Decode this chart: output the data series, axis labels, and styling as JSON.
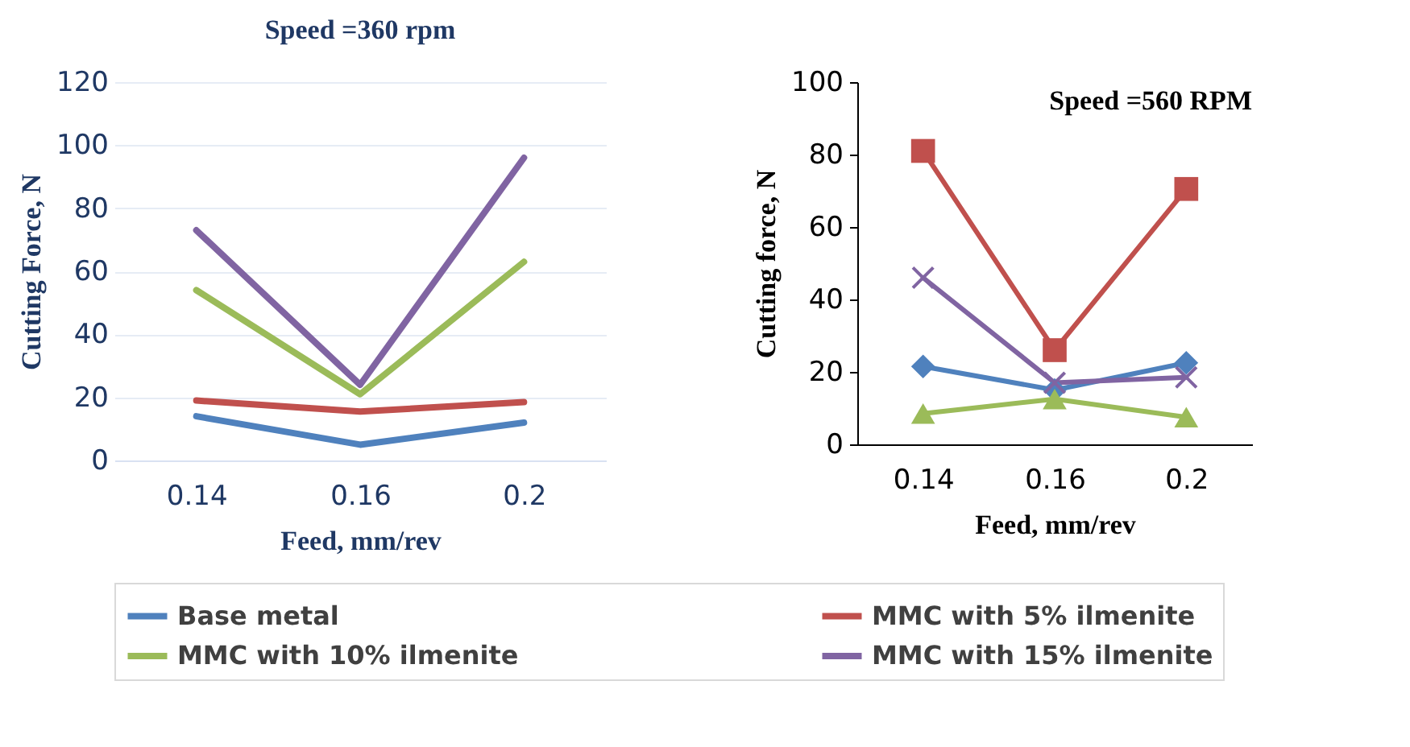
{
  "chart_data": [
    {
      "type": "line",
      "title": "Speed =360 rpm",
      "xlabel": "Feed, mm/rev",
      "ylabel": "Cutting Force, N",
      "categories": [
        "0.14",
        "0.16",
        "0.2"
      ],
      "ylim": [
        0,
        120
      ],
      "yticks": [
        0,
        20,
        40,
        60,
        80,
        100,
        120
      ],
      "grid": "y",
      "legend": "bottom",
      "marker": "none",
      "series": [
        {
          "name": "Base metal",
          "color": "#4f81bd",
          "values": [
            14,
            5,
            12
          ]
        },
        {
          "name": "MMC with 5% ilmenite",
          "color": "#c0504d",
          "values": [
            19,
            15.5,
            18.5
          ]
        },
        {
          "name": "MMC with 10% ilmenite",
          "color": "#9bbb59",
          "values": [
            54,
            21,
            63
          ]
        },
        {
          "name": "MMC with 15% ilmenite",
          "color": "#8064a2",
          "values": [
            73,
            24,
            96
          ]
        }
      ]
    },
    {
      "type": "line",
      "title": "Speed =560 RPM",
      "xlabel": "Feed, mm/rev",
      "ylabel": "Cutting force, N",
      "categories": [
        "0.14",
        "0.16",
        "0.2"
      ],
      "ylim": [
        0,
        100
      ],
      "yticks": [
        0,
        20,
        40,
        60,
        80,
        100
      ],
      "grid": false,
      "legend": "bottom",
      "series": [
        {
          "name": "Base metal",
          "color": "#4f81bd",
          "marker": "diamond",
          "values": [
            21.5,
            15,
            22.5
          ]
        },
        {
          "name": "MMC with 5% ilmenite",
          "color": "#c0504d",
          "marker": "square",
          "values": [
            81,
            26,
            70.5
          ]
        },
        {
          "name": "MMC with 10% ilmenite",
          "color": "#9bbb59",
          "marker": "triangle",
          "values": [
            8.5,
            12.5,
            7.5
          ]
        },
        {
          "name": "MMC with 15% ilmenite",
          "color": "#8064a2",
          "marker": "cross",
          "values": [
            46,
            17,
            18.5
          ]
        }
      ]
    }
  ]
}
